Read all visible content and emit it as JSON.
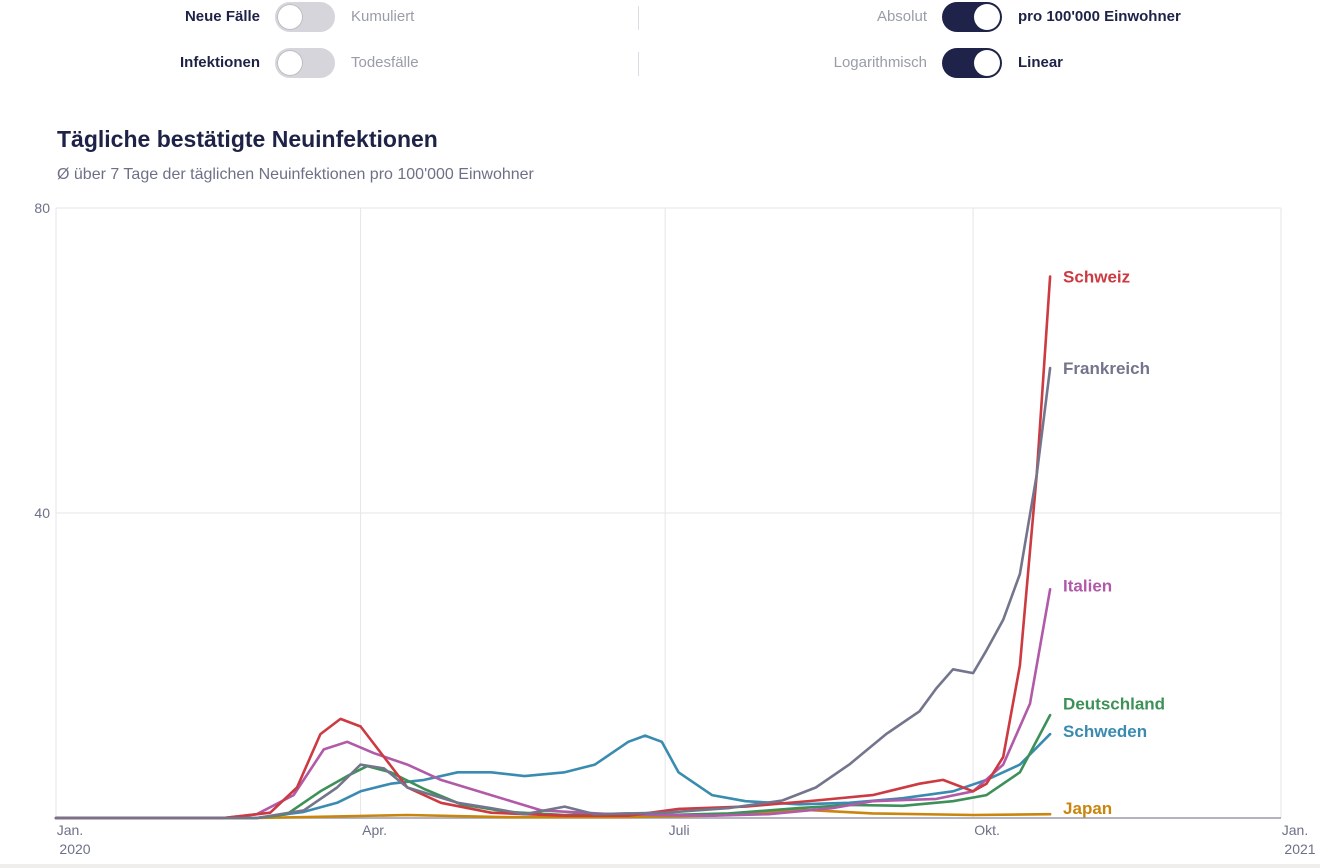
{
  "controls": {
    "row1": {
      "left_active": "Neue Fälle",
      "left_inactive": "Kumuliert",
      "right_inactive": "Absolut",
      "right_active": "pro 100'000 Einwohner"
    },
    "row2": {
      "left_active": "Infektionen",
      "left_inactive": "Todesfälle",
      "right_inactive": "Logarithmisch",
      "right_active": "Linear"
    }
  },
  "chart_data": {
    "type": "line",
    "title": "Tägliche bestätigte Neuinfektionen",
    "subtitle": "Ø über 7 Tage der täglichen Neuinfektionen pro 100'000 Einwohner",
    "ylim": [
      0,
      80
    ],
    "yticks": [
      {
        "value": 40,
        "label": "40"
      },
      {
        "value": 80,
        "label": "80"
      }
    ],
    "xlim": [
      "2020-01-01",
      "2021-01-01"
    ],
    "xticks": [
      {
        "date": "2020-01-01",
        "label": "Jan.",
        "sublabel": "2020"
      },
      {
        "date": "2020-04-01",
        "label": "Apr.",
        "sublabel": ""
      },
      {
        "date": "2020-07-01",
        "label": "Juli",
        "sublabel": ""
      },
      {
        "date": "2020-10-01",
        "label": "Okt.",
        "sublabel": ""
      },
      {
        "date": "2021-01-01",
        "label": "Jan.",
        "sublabel": "2021"
      }
    ],
    "grid": true,
    "series": [
      {
        "name": "Japan",
        "color": "#c9850c",
        "points": [
          [
            "2020-01-01",
            0
          ],
          [
            "2020-03-01",
            0
          ],
          [
            "2020-04-15",
            0.4
          ],
          [
            "2020-05-15",
            0.1
          ],
          [
            "2020-06-15",
            0.1
          ],
          [
            "2020-07-15",
            0.3
          ],
          [
            "2020-08-10",
            1.1
          ],
          [
            "2020-09-01",
            0.6
          ],
          [
            "2020-10-01",
            0.4
          ],
          [
            "2020-10-24",
            0.5
          ]
        ]
      },
      {
        "name": "Schweden",
        "color": "#3a8bb0",
        "points": [
          [
            "2020-01-01",
            0
          ],
          [
            "2020-03-01",
            0
          ],
          [
            "2020-03-15",
            0.8
          ],
          [
            "2020-03-25",
            2
          ],
          [
            "2020-04-01",
            3.5
          ],
          [
            "2020-04-10",
            4.5
          ],
          [
            "2020-04-20",
            5
          ],
          [
            "2020-04-30",
            6
          ],
          [
            "2020-05-10",
            6
          ],
          [
            "2020-05-20",
            5.5
          ],
          [
            "2020-06-01",
            6
          ],
          [
            "2020-06-10",
            7
          ],
          [
            "2020-06-20",
            10
          ],
          [
            "2020-06-25",
            10.8
          ],
          [
            "2020-06-30",
            10
          ],
          [
            "2020-07-05",
            6
          ],
          [
            "2020-07-15",
            3
          ],
          [
            "2020-07-25",
            2.2
          ],
          [
            "2020-08-10",
            1.8
          ],
          [
            "2020-08-25",
            2
          ],
          [
            "2020-09-10",
            2.6
          ],
          [
            "2020-09-25",
            3.5
          ],
          [
            "2020-10-05",
            5
          ],
          [
            "2020-10-15",
            7
          ],
          [
            "2020-10-24",
            11
          ]
        ]
      },
      {
        "name": "Deutschland",
        "color": "#3d9158",
        "points": [
          [
            "2020-01-01",
            0
          ],
          [
            "2020-03-01",
            0
          ],
          [
            "2020-03-10",
            0.5
          ],
          [
            "2020-03-20",
            3.5
          ],
          [
            "2020-03-28",
            5.5
          ],
          [
            "2020-04-03",
            6.8
          ],
          [
            "2020-04-10",
            6
          ],
          [
            "2020-04-20",
            3.8
          ],
          [
            "2020-05-01",
            1.8
          ],
          [
            "2020-05-15",
            0.8
          ],
          [
            "2020-06-01",
            0.4
          ],
          [
            "2020-06-20",
            0.6
          ],
          [
            "2020-07-01",
            0.4
          ],
          [
            "2020-07-20",
            0.6
          ],
          [
            "2020-08-10",
            1.3
          ],
          [
            "2020-08-25",
            1.7
          ],
          [
            "2020-09-10",
            1.6
          ],
          [
            "2020-09-25",
            2.2
          ],
          [
            "2020-10-05",
            3
          ],
          [
            "2020-10-15",
            6
          ],
          [
            "2020-10-24",
            13.5
          ]
        ]
      },
      {
        "name": "Italien",
        "color": "#b05aa8",
        "points": [
          [
            "2020-01-01",
            0
          ],
          [
            "2020-02-20",
            0
          ],
          [
            "2020-03-01",
            0.5
          ],
          [
            "2020-03-12",
            3
          ],
          [
            "2020-03-21",
            9
          ],
          [
            "2020-03-28",
            10
          ],
          [
            "2020-04-05",
            8.5
          ],
          [
            "2020-04-15",
            7
          ],
          [
            "2020-04-25",
            5
          ],
          [
            "2020-05-10",
            3
          ],
          [
            "2020-05-25",
            1
          ],
          [
            "2020-06-15",
            0.5
          ],
          [
            "2020-07-15",
            0.3
          ],
          [
            "2020-08-01",
            0.5
          ],
          [
            "2020-08-20",
            1.3
          ],
          [
            "2020-09-01",
            2.2
          ],
          [
            "2020-09-20",
            2.5
          ],
          [
            "2020-10-01",
            3.5
          ],
          [
            "2020-10-10",
            7
          ],
          [
            "2020-10-18",
            15
          ],
          [
            "2020-10-24",
            30
          ]
        ]
      },
      {
        "name": "Schweiz",
        "color": "#cc3a42",
        "points": [
          [
            "2020-01-01",
            0
          ],
          [
            "2020-02-20",
            0
          ],
          [
            "2020-03-05",
            0.7
          ],
          [
            "2020-03-13",
            4
          ],
          [
            "2020-03-20",
            11
          ],
          [
            "2020-03-26",
            13
          ],
          [
            "2020-04-01",
            12
          ],
          [
            "2020-04-08",
            8
          ],
          [
            "2020-04-15",
            4
          ],
          [
            "2020-04-25",
            2
          ],
          [
            "2020-05-10",
            0.7
          ],
          [
            "2020-06-01",
            0.3
          ],
          [
            "2020-06-20",
            0.3
          ],
          [
            "2020-07-05",
            1.2
          ],
          [
            "2020-07-25",
            1.5
          ],
          [
            "2020-08-15",
            2.3
          ],
          [
            "2020-09-01",
            3
          ],
          [
            "2020-09-15",
            4.5
          ],
          [
            "2020-09-22",
            5
          ],
          [
            "2020-10-01",
            3.5
          ],
          [
            "2020-10-05",
            4.5
          ],
          [
            "2020-10-10",
            8
          ],
          [
            "2020-10-15",
            20
          ],
          [
            "2020-10-20",
            45
          ],
          [
            "2020-10-24",
            71
          ]
        ]
      },
      {
        "name": "Frankreich",
        "color": "#73758d",
        "points": [
          [
            "2020-01-01",
            0
          ],
          [
            "2020-03-01",
            0
          ],
          [
            "2020-03-15",
            1
          ],
          [
            "2020-03-25",
            4
          ],
          [
            "2020-04-01",
            7
          ],
          [
            "2020-04-08",
            6.5
          ],
          [
            "2020-04-15",
            4
          ],
          [
            "2020-04-30",
            2
          ],
          [
            "2020-05-10",
            1.3
          ],
          [
            "2020-05-20",
            0.5
          ],
          [
            "2020-06-01",
            1.5
          ],
          [
            "2020-06-10",
            0.5
          ],
          [
            "2020-07-01",
            0.7
          ],
          [
            "2020-07-20",
            1.3
          ],
          [
            "2020-08-05",
            2.3
          ],
          [
            "2020-08-15",
            4
          ],
          [
            "2020-08-25",
            7
          ],
          [
            "2020-09-05",
            11
          ],
          [
            "2020-09-15",
            14
          ],
          [
            "2020-09-20",
            17
          ],
          [
            "2020-09-25",
            19.5
          ],
          [
            "2020-10-01",
            19
          ],
          [
            "2020-10-05",
            22
          ],
          [
            "2020-10-10",
            26
          ],
          [
            "2020-10-15",
            32
          ],
          [
            "2020-10-20",
            45
          ],
          [
            "2020-10-24",
            59
          ]
        ]
      }
    ],
    "end_labels": [
      {
        "text": "Schweiz",
        "y": 71
      },
      {
        "text": "Frankreich",
        "y": 59
      },
      {
        "text": "Italien",
        "y": 30.5
      },
      {
        "text": "Deutschland",
        "y": 15
      },
      {
        "text": "Schweden",
        "y": 11.4
      },
      {
        "text": "Japan",
        "y": 1.3
      }
    ]
  }
}
